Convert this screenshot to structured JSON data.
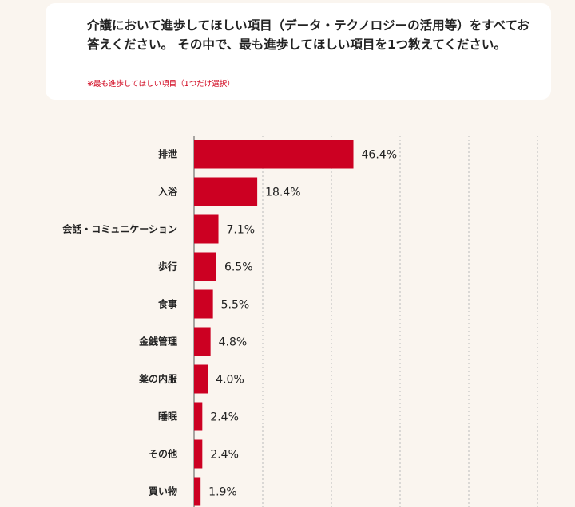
{
  "question": {
    "text": "介護において進歩してほしい項目（データ・テクノロジーの活用等）をすべてお答えください。 その中で、最も進歩してほしい項目を1つ教えてください。",
    "note": "※最も進歩してほしい項目（1つだけ選択）"
  },
  "colors": {
    "bar": "#cc0022",
    "background": "#faf5ef",
    "grid": "#bbbbbb"
  },
  "chart_data": {
    "type": "bar",
    "orientation": "horizontal",
    "title": "",
    "xlabel": "",
    "ylabel": "",
    "unit": "%",
    "xlim": [
      0,
      100
    ],
    "grid": true,
    "categories": [
      "排泄",
      "入浴",
      "会話・コミュニケーション",
      "歩行",
      "食事",
      "金銭管理",
      "薬の内服",
      "睡眠",
      "その他",
      "買い物"
    ],
    "values": [
      46.4,
      18.4,
      7.1,
      6.5,
      5.5,
      4.8,
      4.0,
      2.4,
      2.4,
      1.9
    ],
    "value_labels": [
      "46.4%",
      "18.4%",
      "7.1%",
      "6.5%",
      "5.5%",
      "4.8%",
      "4.0%",
      "2.4%",
      "2.4%",
      "1.9%"
    ]
  }
}
